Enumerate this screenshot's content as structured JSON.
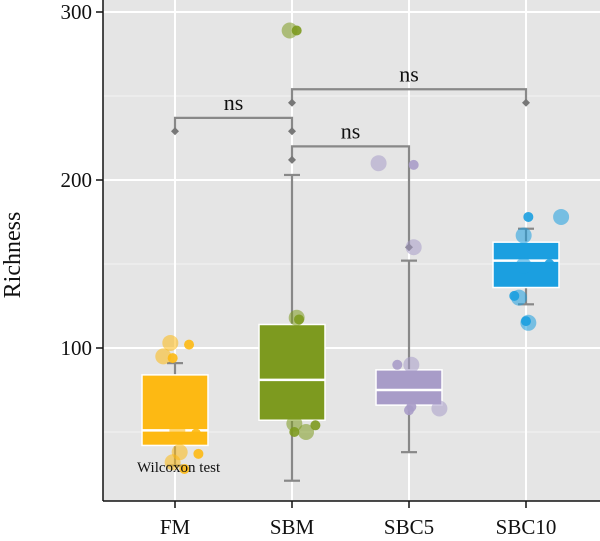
{
  "chart_data": {
    "type": "boxplot",
    "ylabel": "Richness",
    "ylim": [
      0,
      300
    ],
    "yticks": [
      100,
      200,
      300
    ],
    "categories": [
      "FM",
      "SBM",
      "SBC5",
      "SBC10"
    ],
    "colors": [
      "#FDB913",
      "#7D9A1F",
      "#A89CC8",
      "#1B9FE0"
    ],
    "groups": [
      {
        "name": "FM",
        "whisker_low": 30,
        "q1": 42,
        "median": 51,
        "q3": 84,
        "whisker_high": 91,
        "points": [
          [
            -0.04,
            103
          ],
          [
            0.12,
            102
          ],
          [
            -0.1,
            95
          ],
          [
            -0.02,
            94
          ],
          [
            0.02,
            51
          ],
          [
            0.18,
            49
          ],
          [
            0.04,
            38
          ],
          [
            0.2,
            37
          ],
          [
            -0.02,
            32
          ],
          [
            0.08,
            28
          ]
        ]
      },
      {
        "name": "SBM",
        "whisker_low": 21,
        "q1": 57,
        "median": 81,
        "q3": 114,
        "whisker_high": 203,
        "points": [
          [
            -0.02,
            289
          ],
          [
            0.04,
            289
          ],
          [
            0.04,
            118
          ],
          [
            0.06,
            117
          ],
          [
            0.02,
            55
          ],
          [
            0.2,
            54
          ],
          [
            0.12,
            50
          ],
          [
            0.02,
            50
          ]
        ]
      },
      {
        "name": "SBC5",
        "whisker_low": 38,
        "q1": 66,
        "median": 75,
        "q3": 87,
        "whisker_high": 152,
        "points": [
          [
            -0.26,
            210
          ],
          [
            0.04,
            209
          ],
          [
            0.04,
            160
          ],
          [
            -0.1,
            90
          ],
          [
            0.02,
            90
          ],
          [
            0.02,
            65
          ],
          [
            0.26,
            64
          ],
          [
            0.0,
            63
          ]
        ]
      },
      {
        "name": "SBC10",
        "whisker_low": 126,
        "q1": 136,
        "median": 152,
        "q3": 163,
        "whisker_high": 171,
        "points": [
          [
            0.3,
            178
          ],
          [
            0.02,
            178
          ],
          [
            -0.02,
            167
          ],
          [
            0.2,
            150
          ],
          [
            -0.02,
            149
          ],
          [
            -0.1,
            131
          ],
          [
            -0.06,
            130
          ],
          [
            0.0,
            116
          ],
          [
            0.02,
            115
          ]
        ]
      }
    ],
    "comparisons": [
      {
        "from": "FM",
        "to": "SBM",
        "y_from": 229,
        "y_to": 229,
        "y_bracket": 237,
        "label": "ns"
      },
      {
        "from": "SBM",
        "to": "SBC5",
        "y_from": 212,
        "y_to": 160,
        "y_bracket": 220,
        "label": "ns"
      },
      {
        "from": "SBM",
        "to": "SBC10",
        "y_from": 246,
        "y_to": 246,
        "y_bracket": 254,
        "label": "ns"
      }
    ],
    "annotation": "Wilcoxon test",
    "grid": true,
    "background": "#E5E5E5"
  }
}
